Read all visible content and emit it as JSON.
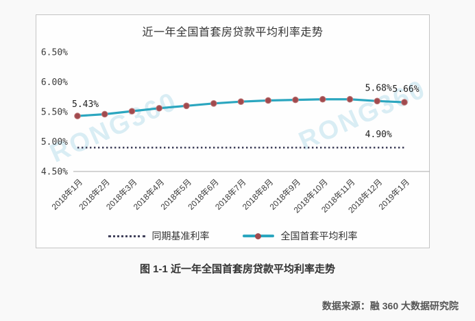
{
  "page": {
    "caption": "图 1-1 近一年全国首套房贷款平均利率走势",
    "source": "数据来源：融 360 大数据研究院"
  },
  "watermark": {
    "text": "RONG360"
  },
  "colors": {
    "line": "#2ba6bf",
    "marker": "#a14a4e",
    "marker_ring": "#c07a7a",
    "benchmark": "#40405a",
    "axis": "#a8a8a8",
    "watermark": "#d9edf4"
  },
  "chart_data": {
    "type": "line",
    "title": "近一年全国首套房贷款平均利率走势",
    "categories": [
      "2018年1月",
      "2018年2月",
      "2018年3月",
      "2018年4月",
      "2018年5月",
      "2018年6月",
      "2018年7月",
      "2018年8月",
      "2018年9月",
      "2018年10月",
      "2018年11月",
      "2018年12月",
      "2019年1月"
    ],
    "series": [
      {
        "name": "同期基准利率",
        "style": "dotted",
        "values": [
          4.9,
          4.9,
          4.9,
          4.9,
          4.9,
          4.9,
          4.9,
          4.9,
          4.9,
          4.9,
          4.9,
          4.9,
          4.9
        ]
      },
      {
        "name": "全国首套平均利率",
        "style": "line-marker",
        "values": [
          5.43,
          5.46,
          5.51,
          5.56,
          5.6,
          5.64,
          5.67,
          5.69,
          5.7,
          5.71,
          5.71,
          5.68,
          5.66
        ]
      }
    ],
    "annotations": [
      {
        "text": "5.43%",
        "series": 1,
        "index": 0,
        "placement": "above-left"
      },
      {
        "text": "5.68%",
        "series": 1,
        "index": 11,
        "placement": "above"
      },
      {
        "text": "5.66%",
        "series": 1,
        "index": 12,
        "placement": "above"
      },
      {
        "text": "4.90%",
        "series": 0,
        "index": 11,
        "placement": "above"
      }
    ],
    "ylim": [
      4.5,
      6.5
    ],
    "yticks": [
      {
        "label": "6.50%",
        "value": 6.5
      },
      {
        "label": "6.00%",
        "value": 6.0
      },
      {
        "label": "5.50%",
        "value": 5.5
      },
      {
        "label": "5.00%",
        "value": 5.0
      },
      {
        "label": "4.50%",
        "value": 4.5
      }
    ],
    "legend_position": "bottom",
    "grid": false
  }
}
